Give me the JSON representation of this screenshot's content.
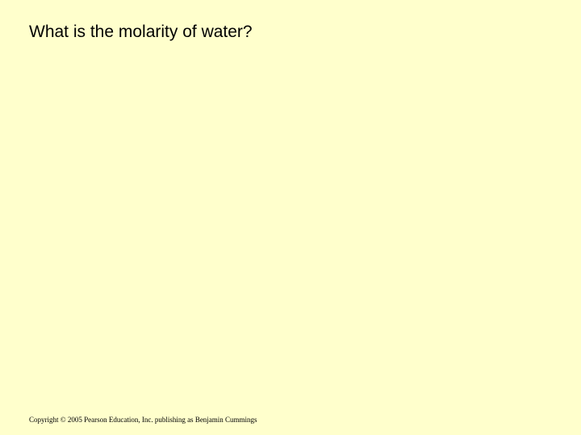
{
  "slide": {
    "title": "What is the molarity of water?",
    "copyright": "Copyright © 2005 Pearson Education, Inc. publishing as Benjamin Cummings",
    "background_color": "#ffffcc",
    "title_fontsize": 21,
    "title_color": "#000000",
    "copyright_fontsize": 9,
    "copyright_color": "#000000"
  }
}
